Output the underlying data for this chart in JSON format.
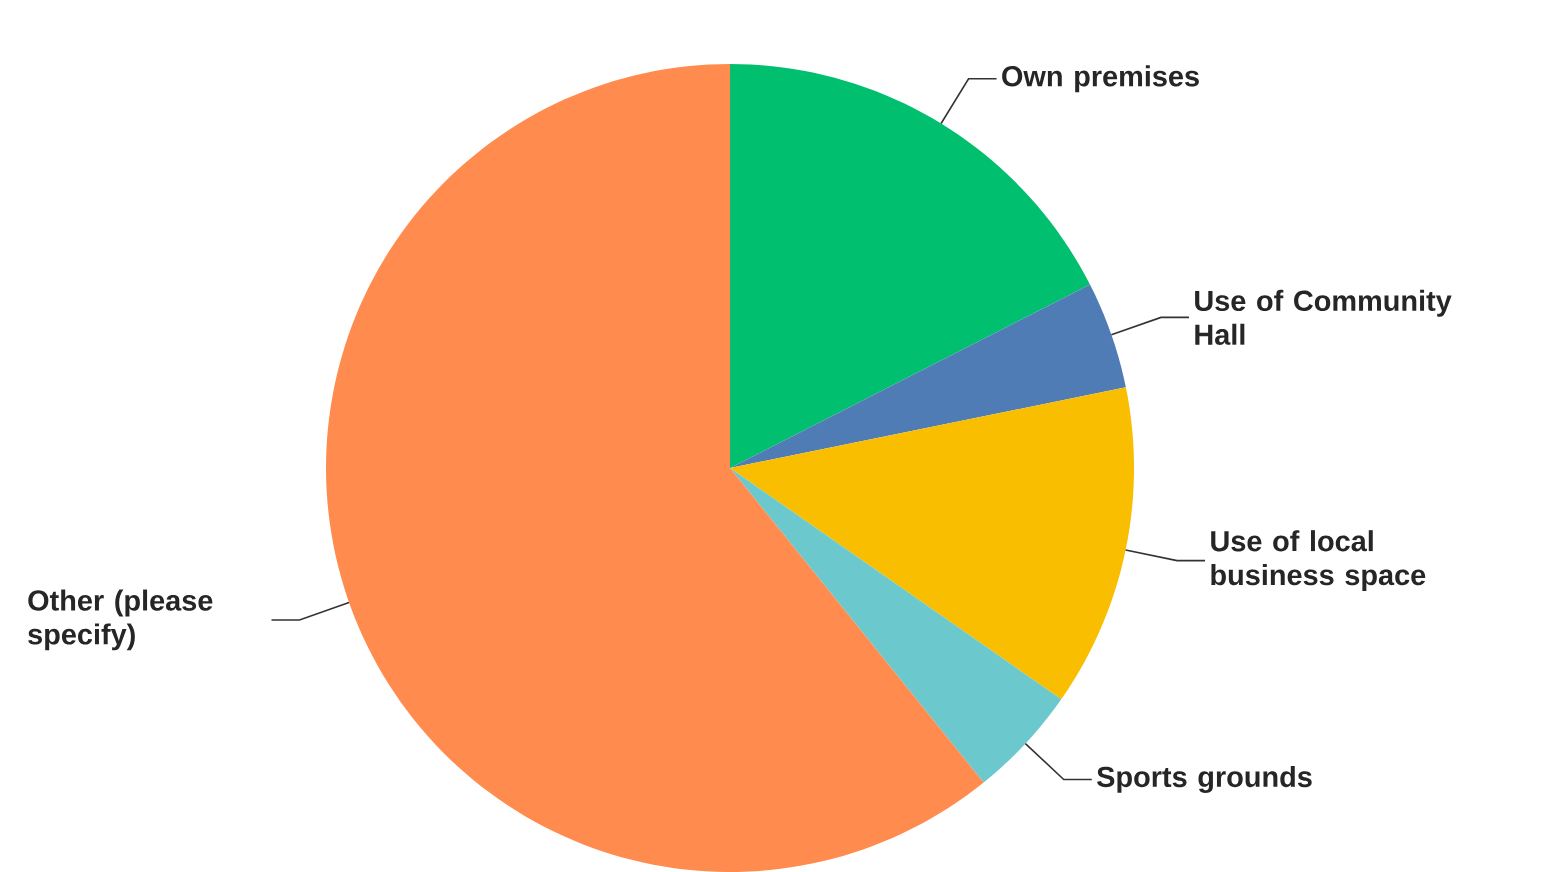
{
  "chart_data": {
    "type": "pie",
    "categories": [
      "Own premises",
      "Use of Community Hall",
      "Use of local business space",
      "Sports grounds",
      "Other (please specify)"
    ],
    "values": [
      17.5,
      4.3,
      12.9,
      4.5,
      60.8
    ],
    "colors": [
      "#00bf6f",
      "#507cb6",
      "#f9be00",
      "#6bc8cd",
      "#ff8b4f"
    ]
  }
}
